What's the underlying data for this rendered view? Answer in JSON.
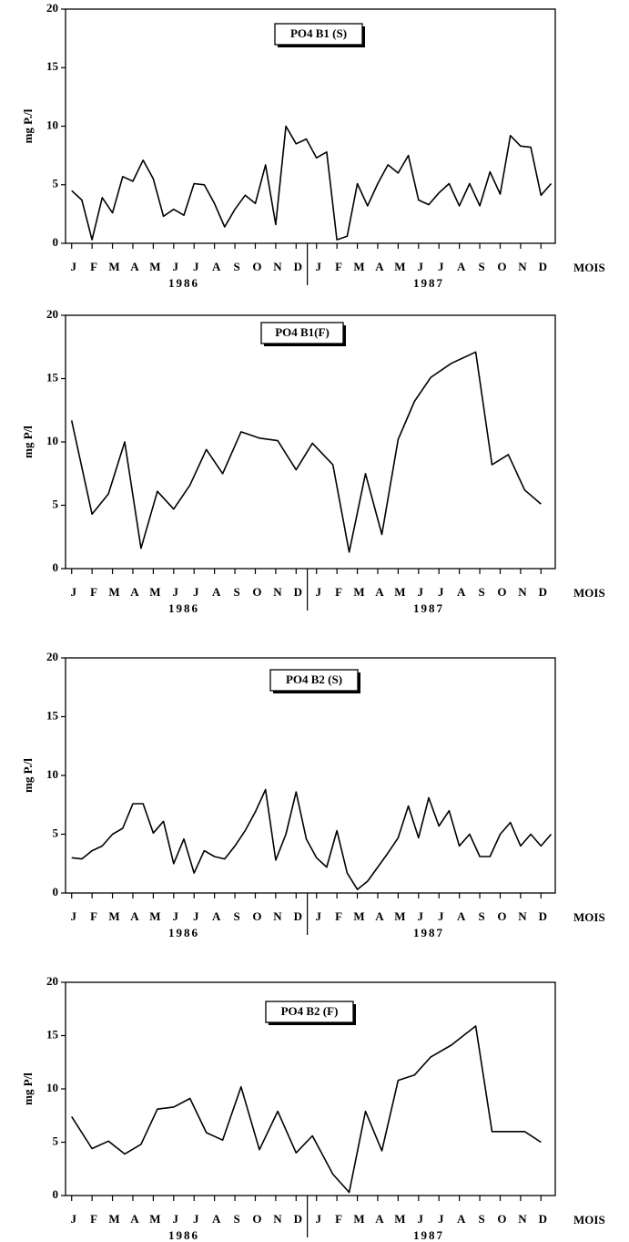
{
  "chart_data": [
    {
      "type": "line",
      "title": "PO4 B1 (S)",
      "ylabel": "mg P./l",
      "xlabel": "MOIS",
      "year_labels": [
        "1986",
        "1987"
      ],
      "xlim": [
        -0.3,
        23.7
      ],
      "ylim": [
        0,
        20
      ],
      "yticks": [
        0,
        5,
        10,
        15,
        20
      ],
      "xticks": [
        {
          "value": 0,
          "label": "J"
        },
        {
          "value": 1,
          "label": "F"
        },
        {
          "value": 2,
          "label": "M"
        },
        {
          "value": 3,
          "label": "A"
        },
        {
          "value": 4,
          "label": "M"
        },
        {
          "value": 5,
          "label": "J"
        },
        {
          "value": 6,
          "label": "J"
        },
        {
          "value": 7,
          "label": "A"
        },
        {
          "value": 8,
          "label": "S"
        },
        {
          "value": 9,
          "label": "O"
        },
        {
          "value": 10,
          "label": "N"
        },
        {
          "value": 11,
          "label": "D"
        },
        {
          "value": 12,
          "label": "J"
        },
        {
          "value": 13,
          "label": "F"
        },
        {
          "value": 14,
          "label": "M"
        },
        {
          "value": 15,
          "label": "A"
        },
        {
          "value": 16,
          "label": "M"
        },
        {
          "value": 17,
          "label": "J"
        },
        {
          "value": 18,
          "label": "J"
        },
        {
          "value": 19,
          "label": "A"
        },
        {
          "value": 20,
          "label": "S"
        },
        {
          "value": 21,
          "label": "O"
        },
        {
          "value": 22,
          "label": "N"
        },
        {
          "value": 23,
          "label": "D"
        }
      ],
      "x": [
        0,
        0.5,
        1,
        1.5,
        2,
        2.5,
        3,
        3.5,
        4,
        4.5,
        5,
        5.5,
        6,
        6.5,
        7,
        7.5,
        8,
        8.5,
        9,
        9.5,
        10,
        10.5,
        11,
        11.5,
        12,
        12.5,
        13,
        13.5,
        14,
        14.5,
        15,
        15.5,
        16,
        16.5,
        17,
        17.5,
        18,
        18.5,
        19,
        19.5,
        20,
        20.5,
        21,
        21.5,
        22,
        22.5,
        23,
        23.5
      ],
      "values": [
        4.5,
        3.7,
        0.3,
        3.9,
        2.6,
        5.7,
        5.3,
        7.1,
        5.5,
        2.3,
        2.9,
        2.4,
        5.1,
        5.0,
        3.4,
        1.4,
        2.9,
        4.1,
        3.4,
        6.7,
        1.6,
        10.0,
        8.5,
        8.9,
        7.3,
        7.8,
        0.3,
        0.6,
        5.1,
        3.2,
        5.1,
        6.7,
        6.0,
        7.5,
        3.7,
        3.3,
        4.3,
        5.1,
        3.2,
        5.1,
        3.2,
        6.1,
        4.2,
        9.2,
        8.3,
        8.2,
        4.1,
        5.1
      ],
      "color": "#000000"
    },
    {
      "type": "line",
      "title": "PO4 B1(F)",
      "ylabel": "mg P/l",
      "xlabel": "MOIS",
      "year_labels": [
        "1986",
        "1987"
      ],
      "xlim": [
        -0.3,
        23.7
      ],
      "ylim": [
        0,
        20
      ],
      "yticks": [
        0,
        5,
        10,
        15,
        20
      ],
      "xticks": [
        {
          "value": 0,
          "label": "J"
        },
        {
          "value": 1,
          "label": "F"
        },
        {
          "value": 2,
          "label": "M"
        },
        {
          "value": 3,
          "label": "A"
        },
        {
          "value": 4,
          "label": "M"
        },
        {
          "value": 5,
          "label": "J"
        },
        {
          "value": 6,
          "label": "J"
        },
        {
          "value": 7,
          "label": "A"
        },
        {
          "value": 8,
          "label": "S"
        },
        {
          "value": 9,
          "label": "O"
        },
        {
          "value": 10,
          "label": "N"
        },
        {
          "value": 11,
          "label": "D"
        },
        {
          "value": 12,
          "label": "J"
        },
        {
          "value": 13,
          "label": "F"
        },
        {
          "value": 14,
          "label": "M"
        },
        {
          "value": 15,
          "label": "A"
        },
        {
          "value": 16,
          "label": "M"
        },
        {
          "value": 17,
          "label": "J"
        },
        {
          "value": 18,
          "label": "J"
        },
        {
          "value": 19,
          "label": "A"
        },
        {
          "value": 20,
          "label": "S"
        },
        {
          "value": 21,
          "label": "O"
        },
        {
          "value": 22,
          "label": "N"
        },
        {
          "value": 23,
          "label": "D"
        }
      ],
      "x": [
        0,
        1,
        1.8,
        2.6,
        3.4,
        4.2,
        5,
        5.8,
        6.6,
        7.4,
        8.3,
        9.2,
        10.1,
        11,
        11.8,
        12.8,
        13.6,
        14.4,
        15.2,
        16,
        16.8,
        17.6,
        18.6,
        19.8,
        20.6,
        21.4,
        22.2,
        23
      ],
      "values": [
        11.7,
        4.3,
        5.9,
        10.0,
        1.6,
        6.1,
        4.7,
        6.6,
        9.4,
        7.5,
        10.8,
        10.3,
        10.1,
        7.8,
        9.9,
        8.2,
        1.3,
        7.5,
        2.7,
        10.2,
        13.2,
        15.1,
        16.2,
        17.1,
        8.2,
        9.0,
        6.2,
        5.1
      ],
      "color": "#000000"
    },
    {
      "type": "line",
      "title": "PO4 B2 (S)",
      "ylabel": "mg P./l",
      "xlabel": "MOIS",
      "year_labels": [
        "1986",
        "1987"
      ],
      "xlim": [
        -0.3,
        23.7
      ],
      "ylim": [
        0,
        20
      ],
      "yticks": [
        0,
        5,
        10,
        15,
        20
      ],
      "xticks": [
        {
          "value": 0,
          "label": "J"
        },
        {
          "value": 1,
          "label": "F"
        },
        {
          "value": 2,
          "label": "M"
        },
        {
          "value": 3,
          "label": "A"
        },
        {
          "value": 4,
          "label": "M"
        },
        {
          "value": 5,
          "label": "J"
        },
        {
          "value": 6,
          "label": "J"
        },
        {
          "value": 7,
          "label": "A"
        },
        {
          "value": 8,
          "label": "S"
        },
        {
          "value": 9,
          "label": "O"
        },
        {
          "value": 10,
          "label": "N"
        },
        {
          "value": 11,
          "label": "D"
        },
        {
          "value": 12,
          "label": "J"
        },
        {
          "value": 13,
          "label": "F"
        },
        {
          "value": 14,
          "label": "M"
        },
        {
          "value": 15,
          "label": "A"
        },
        {
          "value": 16,
          "label": "M"
        },
        {
          "value": 17,
          "label": "J"
        },
        {
          "value": 18,
          "label": "J"
        },
        {
          "value": 19,
          "label": "A"
        },
        {
          "value": 20,
          "label": "S"
        },
        {
          "value": 21,
          "label": "O"
        },
        {
          "value": 22,
          "label": "N"
        },
        {
          "value": 23,
          "label": "D"
        }
      ],
      "x": [
        0,
        0.5,
        1,
        1.5,
        2,
        2.5,
        3,
        3.5,
        4,
        4.5,
        5,
        5.5,
        6,
        6.5,
        7,
        7.5,
        8,
        8.5,
        9,
        9.5,
        10,
        10.5,
        11,
        11.5,
        12,
        12.5,
        13,
        13.5,
        14,
        14.5,
        15,
        15.5,
        16,
        16.5,
        17,
        17.5,
        18,
        18.5,
        19,
        19.5,
        20,
        20.5,
        21,
        21.5,
        22,
        22.5,
        23,
        23.5
      ],
      "values": [
        3.0,
        2.9,
        3.6,
        4.0,
        5.0,
        5.5,
        7.6,
        7.6,
        5.1,
        6.1,
        2.5,
        4.6,
        1.7,
        3.6,
        3.1,
        2.9,
        4.0,
        5.3,
        6.9,
        8.8,
        2.8,
        5.0,
        8.6,
        4.6,
        3.0,
        2.2,
        5.3,
        1.7,
        0.3,
        1.0,
        2.2,
        3.4,
        4.7,
        7.4,
        4.7,
        8.1,
        5.7,
        7.0,
        4.0,
        5.0,
        3.1,
        3.1,
        5.0,
        6.0,
        4.0,
        5.0,
        4.0,
        5.0
      ],
      "color": "#000000"
    },
    {
      "type": "line",
      "title": "PO4 B2 (F)",
      "ylabel": "mg P/l",
      "xlabel": "MOIS",
      "year_labels": [
        "1986",
        "1987"
      ],
      "xlim": [
        -0.3,
        23.7
      ],
      "ylim": [
        0,
        20
      ],
      "yticks": [
        0,
        5,
        10,
        15,
        20
      ],
      "xticks": [
        {
          "value": 0,
          "label": "J"
        },
        {
          "value": 1,
          "label": "F"
        },
        {
          "value": 2,
          "label": "M"
        },
        {
          "value": 3,
          "label": "A"
        },
        {
          "value": 4,
          "label": "M"
        },
        {
          "value": 5,
          "label": "J"
        },
        {
          "value": 6,
          "label": "J"
        },
        {
          "value": 7,
          "label": "A"
        },
        {
          "value": 8,
          "label": "S"
        },
        {
          "value": 9,
          "label": "O"
        },
        {
          "value": 10,
          "label": "N"
        },
        {
          "value": 11,
          "label": "D"
        },
        {
          "value": 12,
          "label": "J"
        },
        {
          "value": 13,
          "label": "F"
        },
        {
          "value": 14,
          "label": "M"
        },
        {
          "value": 15,
          "label": "A"
        },
        {
          "value": 16,
          "label": "M"
        },
        {
          "value": 17,
          "label": "J"
        },
        {
          "value": 18,
          "label": "J"
        },
        {
          "value": 19,
          "label": "A"
        },
        {
          "value": 20,
          "label": "S"
        },
        {
          "value": 21,
          "label": "O"
        },
        {
          "value": 22,
          "label": "N"
        },
        {
          "value": 23,
          "label": "D"
        }
      ],
      "x": [
        0,
        1,
        1.8,
        2.6,
        3.4,
        4.2,
        5,
        5.8,
        6.6,
        7.4,
        8.3,
        9.2,
        10.1,
        11,
        11.8,
        12.8,
        13.6,
        14.4,
        15.2,
        16,
        16.8,
        17.6,
        18.6,
        19.8,
        20.6,
        21.4,
        22.2,
        23
      ],
      "values": [
        7.4,
        4.4,
        5.1,
        3.9,
        4.8,
        8.1,
        8.3,
        9.1,
        5.9,
        5.2,
        10.2,
        4.3,
        7.9,
        4.0,
        5.6,
        2.0,
        0.3,
        7.9,
        4.2,
        10.8,
        11.3,
        13.0,
        14.1,
        15.9,
        6.0,
        6.0,
        6.0,
        5.0
      ],
      "color": "#000000"
    }
  ]
}
